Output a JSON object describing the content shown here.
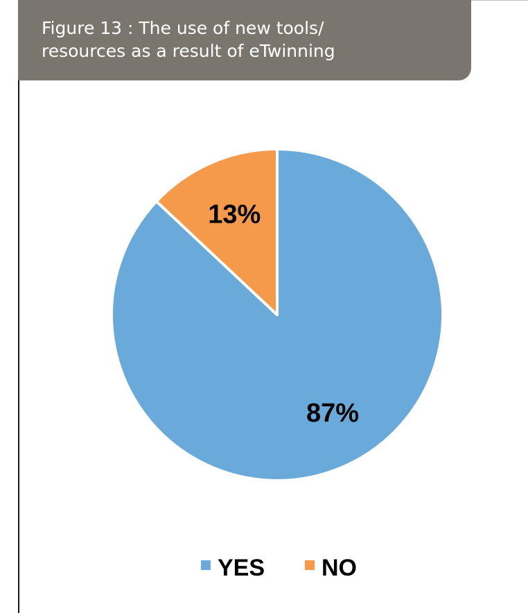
{
  "figure": {
    "title_line1": "Figure 13 : The use of new tools/",
    "title_line2": "resources as a result of eTwinning"
  },
  "chart_data": {
    "type": "pie",
    "title": "Figure 13 : The use of new tools/ resources as a result of eTwinning",
    "legend_position": "bottom",
    "slices": [
      {
        "label": "YES",
        "value": 87,
        "display": "87%",
        "color": "#6aaadb"
      },
      {
        "label": "NO",
        "value": 13,
        "display": "13%",
        "color": "#f59a4a"
      }
    ]
  }
}
